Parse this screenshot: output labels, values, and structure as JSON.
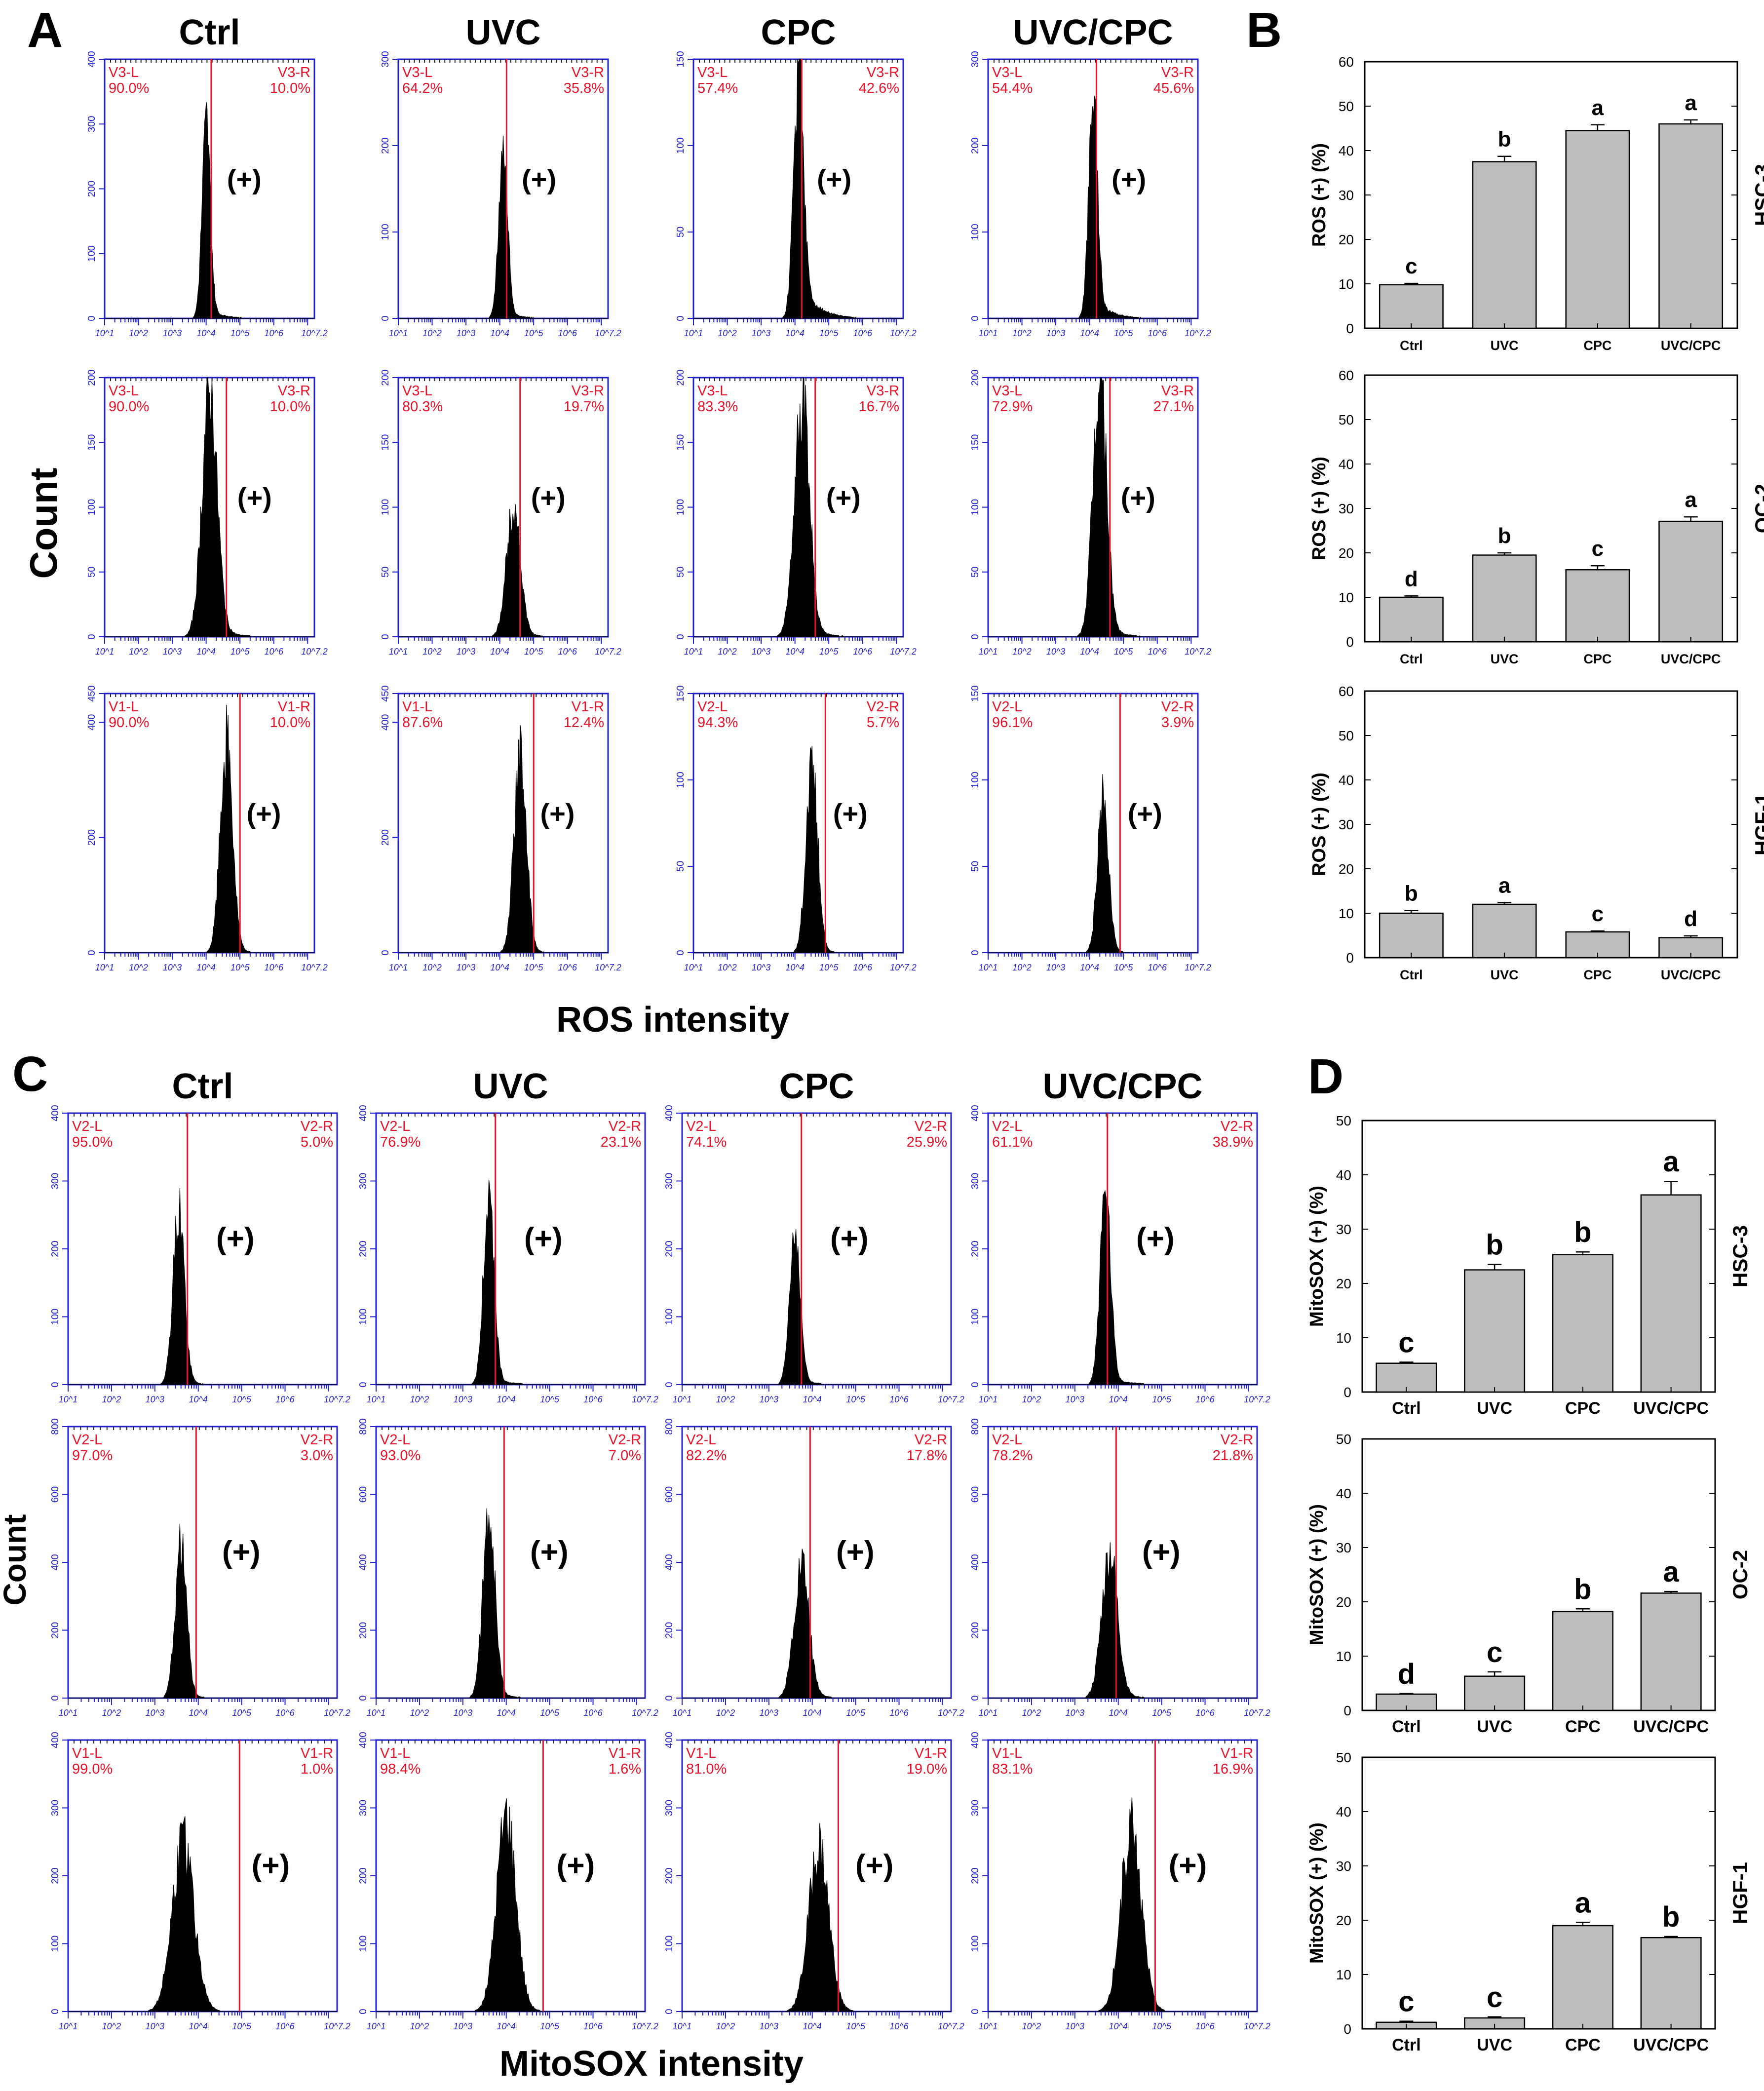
{
  "figure": {
    "panel_letters": [
      "A",
      "B",
      "C",
      "D"
    ],
    "histogram_axis_labels": {
      "A": {
        "y": "Count",
        "x": "ROS intensity"
      },
      "C": {
        "y": "Count",
        "x": "MitoSOX intensity"
      }
    },
    "bar_y_labels": {
      "B": "ROS (+) (%)",
      "D": "MitoSOX (+) (%)"
    },
    "plus_label": "(+)",
    "x_tick_labels": [
      "10^1",
      "10^2",
      "10^3",
      "10^4",
      "10^5",
      "10^6",
      "10^7.2"
    ]
  },
  "chart_data": [
    {
      "panel": "A",
      "type": "histogram_grid",
      "column_titles": [
        "Ctrl",
        "UVC",
        "CPC",
        "UVC/CPC"
      ],
      "rows": [
        {
          "cell_line": "HSC-3",
          "panels": [
            {
              "ymax": 400,
              "yticks": [
                0,
                100,
                200,
                300,
                400
              ],
              "left_gate": "V3-L",
              "right_gate": "V3-R",
              "left_pct": "90.0%",
              "right_pct": "10.0%",
              "gate_x": 4.15,
              "peak_x": 4.0,
              "sigma": 0.12,
              "peak_count": 290,
              "tail": 0.05
            },
            {
              "ymax": 300,
              "yticks": [
                0,
                100,
                200,
                300
              ],
              "left_gate": "V3-L",
              "right_gate": "V3-R",
              "left_pct": "64.2%",
              "right_pct": "35.8%",
              "gate_x": 4.2,
              "peak_x": 4.1,
              "sigma": 0.13,
              "peak_count": 195,
              "tail": 0.04
            },
            {
              "ymax": 150,
              "yticks": [
                0,
                50,
                100,
                150
              ],
              "left_gate": "V3-L",
              "right_gate": "V3-R",
              "left_pct": "57.4%",
              "right_pct": "42.6%",
              "gate_x": 4.2,
              "peak_x": 4.1,
              "sigma": 0.14,
              "peak_count": 140,
              "tail": 0.18
            },
            {
              "ymax": 300,
              "yticks": [
                0,
                100,
                200,
                300
              ],
              "left_gate": "V3-L",
              "right_gate": "V3-R",
              "left_pct": "54.4%",
              "right_pct": "45.6%",
              "gate_x": 4.2,
              "peak_x": 4.1,
              "sigma": 0.13,
              "peak_count": 240,
              "tail": 0.1
            }
          ]
        },
        {
          "cell_line": "OC-2",
          "panels": [
            {
              "ymax": 200,
              "yticks": [
                0,
                50,
                100,
                150,
                200
              ],
              "left_gate": "V3-L",
              "right_gate": "V3-R",
              "left_pct": "90.0%",
              "right_pct": "10.0%",
              "gate_x": 4.6,
              "peak_x": 4.1,
              "sigma": 0.22,
              "peak_count": 185,
              "tail": 0.06
            },
            {
              "ymax": 200,
              "yticks": [
                0,
                50,
                100,
                150,
                200
              ],
              "left_gate": "V3-L",
              "right_gate": "V3-R",
              "left_pct": "80.3%",
              "right_pct": "19.7%",
              "gate_x": 4.6,
              "peak_x": 4.4,
              "sigma": 0.2,
              "peak_count": 100,
              "tail": 0.05
            },
            {
              "ymax": 200,
              "yticks": [
                0,
                50,
                100,
                150,
                200
              ],
              "left_gate": "V3-L",
              "right_gate": "V3-R",
              "left_pct": "83.3%",
              "right_pct": "16.7%",
              "gate_x": 4.6,
              "peak_x": 4.2,
              "sigma": 0.22,
              "peak_count": 180,
              "tail": 0.06
            },
            {
              "ymax": 200,
              "yticks": [
                0,
                50,
                100,
                150,
                200
              ],
              "left_gate": "V3-L",
              "right_gate": "V3-R",
              "left_pct": "72.9%",
              "right_pct": "27.1%",
              "gate_x": 4.6,
              "peak_x": 4.3,
              "sigma": 0.2,
              "peak_count": 195,
              "tail": 0.05
            }
          ]
        },
        {
          "cell_line": "HGF-1",
          "panels": [
            {
              "ymax": 450,
              "yticks": [
                0,
                200,
                400,
                450
              ],
              "left_gate": "V1-L",
              "right_gate": "V1-R",
              "left_pct": "90.0%",
              "right_pct": "10.0%",
              "gate_x": 5.0,
              "peak_x": 4.6,
              "sigma": 0.18,
              "peak_count": 360,
              "tail": 0.02
            },
            {
              "ymax": 450,
              "yticks": [
                0,
                200,
                400,
                450
              ],
              "left_gate": "V1-L",
              "right_gate": "V1-R",
              "left_pct": "87.6%",
              "right_pct": "12.4%",
              "gate_x": 5.0,
              "peak_x": 4.6,
              "sigma": 0.18,
              "peak_count": 340,
              "tail": 0.02
            },
            {
              "ymax": 150,
              "yticks": [
                0,
                50,
                100,
                150
              ],
              "left_gate": "V2-L",
              "right_gate": "V2-R",
              "left_pct": "94.3%",
              "right_pct": "5.7%",
              "gate_x": 4.9,
              "peak_x": 4.5,
              "sigma": 0.17,
              "peak_count": 110,
              "tail": 0.02
            },
            {
              "ymax": 150,
              "yticks": [
                0,
                50,
                100,
                150
              ],
              "left_gate": "V2-L",
              "right_gate": "V2-R",
              "left_pct": "96.1%",
              "right_pct": "3.9%",
              "gate_x": 4.9,
              "peak_x": 4.4,
              "sigma": 0.16,
              "peak_count": 90,
              "tail": 0.02
            }
          ]
        }
      ]
    },
    {
      "panel": "B",
      "type": "bar",
      "ylabel": "ROS (+) (%)",
      "ylim": [
        0,
        60
      ],
      "yticks": [
        0,
        10,
        20,
        30,
        40,
        50,
        60
      ],
      "categories": [
        "Ctrl",
        "UVC",
        "CPC",
        "UVC/CPC"
      ],
      "series": [
        {
          "name": "HSC-3",
          "values": [
            9.8,
            37.5,
            44.5,
            46.0
          ],
          "errors": [
            0.3,
            1.2,
            1.3,
            0.9
          ],
          "letters": [
            "c",
            "b",
            "a",
            "a"
          ]
        },
        {
          "name": "OC-2",
          "values": [
            10.0,
            19.5,
            16.2,
            27.1
          ],
          "errors": [
            0.3,
            0.5,
            0.9,
            1.0
          ],
          "letters": [
            "d",
            "b",
            "c",
            "a"
          ]
        },
        {
          "name": "HGF-1",
          "values": [
            10.0,
            12.0,
            5.8,
            4.5
          ],
          "errors": [
            0.6,
            0.4,
            0.2,
            0.4
          ],
          "letters": [
            "b",
            "a",
            "c",
            "d"
          ]
        }
      ]
    },
    {
      "panel": "C",
      "type": "histogram_grid",
      "column_titles": [
        "Ctrl",
        "UVC",
        "CPC",
        "UVC/CPC"
      ],
      "rows": [
        {
          "cell_line": "HSC-3",
          "panels": [
            {
              "ymax": 400,
              "yticks": [
                0,
                100,
                200,
                300,
                400
              ],
              "left_gate": "V2-L",
              "right_gate": "V2-R",
              "left_pct": "95.0%",
              "right_pct": "5.0%",
              "gate_x": 3.75,
              "peak_x": 3.55,
              "sigma": 0.13,
              "peak_count": 250,
              "tail": 0.02
            },
            {
              "ymax": 400,
              "yticks": [
                0,
                100,
                200,
                300,
                400
              ],
              "left_gate": "V2-L",
              "right_gate": "V2-R",
              "left_pct": "76.9%",
              "right_pct": "23.1%",
              "gate_x": 3.75,
              "peak_x": 3.6,
              "sigma": 0.12,
              "peak_count": 280,
              "tail": 0.03
            },
            {
              "ymax": 400,
              "yticks": [
                0,
                100,
                200,
                300,
                400
              ],
              "left_gate": "V2-L",
              "right_gate": "V2-R",
              "left_pct": "74.1%",
              "right_pct": "25.9%",
              "gate_x": 3.75,
              "peak_x": 3.6,
              "sigma": 0.12,
              "peak_count": 225,
              "tail": 0.03
            },
            {
              "ymax": 400,
              "yticks": [
                0,
                100,
                200,
                300,
                400
              ],
              "left_gate": "V2-L",
              "right_gate": "V2-R",
              "left_pct": "61.1%",
              "right_pct": "38.9%",
              "gate_x": 3.75,
              "peak_x": 3.7,
              "sigma": 0.12,
              "peak_count": 280,
              "tail": 0.04
            }
          ]
        },
        {
          "cell_line": "OC-2",
          "panels": [
            {
              "ymax": 800,
              "yticks": [
                0,
                200,
                400,
                600,
                800
              ],
              "left_gate": "V2-L",
              "right_gate": "V2-R",
              "left_pct": "97.0%",
              "right_pct": "3.0%",
              "gate_x": 3.95,
              "peak_x": 3.6,
              "sigma": 0.13,
              "peak_count": 450,
              "tail": 0.02
            },
            {
              "ymax": 800,
              "yticks": [
                0,
                200,
                400,
                600,
                800
              ],
              "left_gate": "V2-L",
              "right_gate": "V2-R",
              "left_pct": "93.0%",
              "right_pct": "7.0%",
              "gate_x": 3.95,
              "peak_x": 3.6,
              "sigma": 0.14,
              "peak_count": 520,
              "tail": 0.03
            },
            {
              "ymax": 800,
              "yticks": [
                0,
                200,
                400,
                600,
                800
              ],
              "left_gate": "V2-L",
              "right_gate": "V2-R",
              "left_pct": "82.2%",
              "right_pct": "17.8%",
              "gate_x": 3.95,
              "peak_x": 3.75,
              "sigma": 0.17,
              "peak_count": 380,
              "tail": 0.04
            },
            {
              "ymax": 800,
              "yticks": [
                0,
                200,
                400,
                600,
                800
              ],
              "left_gate": "V2-L",
              "right_gate": "V2-R",
              "left_pct": "78.2%",
              "right_pct": "21.8%",
              "gate_x": 3.95,
              "peak_x": 3.8,
              "sigma": 0.18,
              "peak_count": 420,
              "tail": 0.04
            }
          ]
        },
        {
          "cell_line": "HGF-1",
          "panels": [
            {
              "ymax": 400,
              "yticks": [
                0,
                100,
                200,
                300,
                400
              ],
              "left_gate": "V1-L",
              "right_gate": "V1-R",
              "left_pct": "99.0%",
              "right_pct": "1.0%",
              "gate_x": 4.95,
              "peak_x": 3.65,
              "sigma": 0.25,
              "peak_count": 245,
              "tail": 0.02
            },
            {
              "ymax": 400,
              "yticks": [
                0,
                100,
                200,
                300,
                400
              ],
              "left_gate": "V1-L",
              "right_gate": "V1-R",
              "left_pct": "98.4%",
              "right_pct": "1.6%",
              "gate_x": 4.85,
              "peak_x": 4.0,
              "sigma": 0.22,
              "peak_count": 290,
              "tail": 0.02
            },
            {
              "ymax": 400,
              "yticks": [
                0,
                100,
                200,
                300,
                400
              ],
              "left_gate": "V1-L",
              "right_gate": "V1-R",
              "left_pct": "81.0%",
              "right_pct": "19.0%",
              "gate_x": 4.6,
              "peak_x": 4.15,
              "sigma": 0.23,
              "peak_count": 240,
              "tail": 0.02
            },
            {
              "ymax": 400,
              "yticks": [
                0,
                100,
                200,
                300,
                400
              ],
              "left_gate": "V1-L",
              "right_gate": "V1-R",
              "left_pct": "83.1%",
              "right_pct": "16.9%",
              "gate_x": 4.85,
              "peak_x": 4.3,
              "sigma": 0.23,
              "peak_count": 275,
              "tail": 0.02
            }
          ]
        }
      ]
    },
    {
      "panel": "D",
      "type": "bar",
      "ylabel": "MitoSOX (+) (%)",
      "ylim": [
        0,
        50
      ],
      "yticks": [
        0,
        10,
        20,
        30,
        40,
        50
      ],
      "categories": [
        "Ctrl",
        "UVC",
        "CPC",
        "UVC/CPC"
      ],
      "series": [
        {
          "name": "HSC-3",
          "values": [
            5.3,
            22.5,
            25.3,
            36.3
          ],
          "errors": [
            0.2,
            1.0,
            0.5,
            2.5
          ],
          "letters": [
            "c",
            "b",
            "b",
            "a"
          ]
        },
        {
          "name": "OC-2",
          "values": [
            3.0,
            6.3,
            18.2,
            21.6
          ],
          "errors": [
            0.1,
            0.8,
            0.5,
            0.3
          ],
          "letters": [
            "d",
            "c",
            "b",
            "a"
          ]
        },
        {
          "name": "HGF-1",
          "values": [
            1.2,
            2.0,
            19.0,
            16.8
          ],
          "errors": [
            0.2,
            0.2,
            0.6,
            0.2
          ],
          "letters": [
            "c",
            "c",
            "a",
            "b"
          ]
        }
      ]
    }
  ]
}
